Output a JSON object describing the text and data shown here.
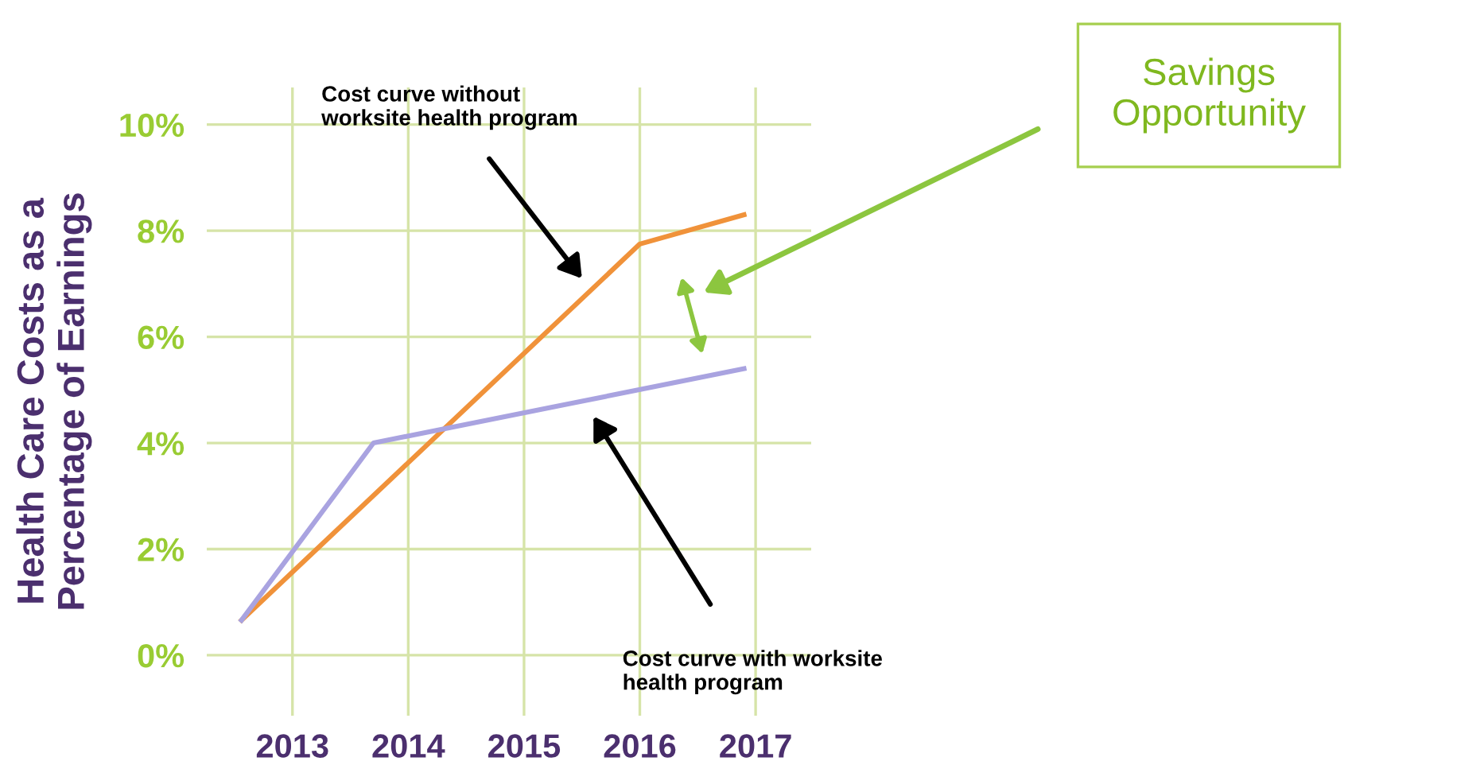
{
  "chart_data": {
    "type": "line",
    "ylabel": "Health Care Costs as a\nPercentage of Earnings",
    "xlim": [
      2012.26,
      2017.48
    ],
    "xticks": [
      2013,
      2014,
      2015,
      2016,
      2017
    ],
    "ylim": [
      -1.14,
      10.7
    ],
    "yticks": [
      {
        "value": 0,
        "label": "0%"
      },
      {
        "value": 2,
        "label": "2%"
      },
      {
        "value": 4,
        "label": "4%"
      },
      {
        "value": 6,
        "label": "6%"
      },
      {
        "value": 8,
        "label": "8%"
      },
      {
        "value": 10,
        "label": "10%"
      }
    ],
    "grid": true,
    "legend": false,
    "marker": "none",
    "line_style": "solid",
    "series": [
      {
        "color": "#f0923a",
        "x": [
          2012.56,
          2016.0,
          2016.9
        ],
        "values": [
          0.66,
          7.75,
          8.3
        ]
      },
      {
        "color": "#a9a3e0",
        "x": [
          2012.56,
          2013.7,
          2016.9
        ],
        "values": [
          0.66,
          4.0,
          5.4
        ]
      }
    ],
    "annotations": [
      "Cost curve without\nworksite health program",
      "Cost curve with worksite\nhealth program",
      "Savings\nOpportunity"
    ]
  }
}
